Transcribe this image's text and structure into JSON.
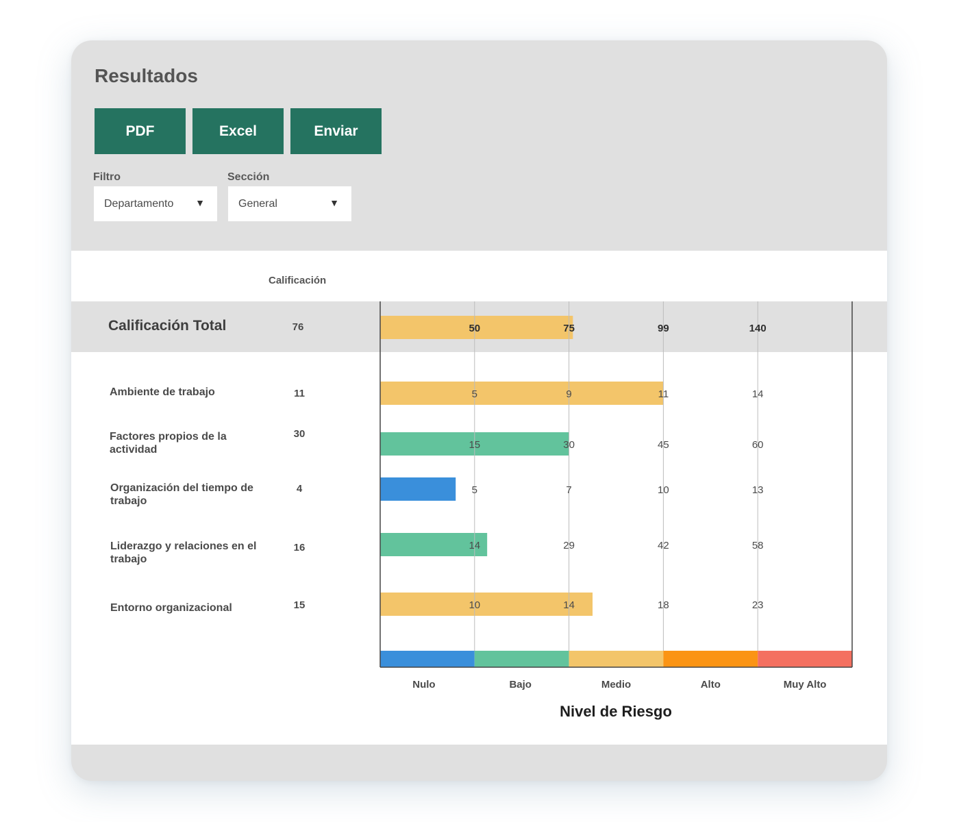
{
  "title": "Resultados",
  "buttons": {
    "pdf": "PDF",
    "excel": "Excel",
    "send": "Enviar"
  },
  "filters": {
    "filter_label": "Filtro",
    "filter_value": "Departamento",
    "section_label": "Sección",
    "section_value": "General"
  },
  "table": {
    "score_header": "Calificación"
  },
  "chart_data": {
    "type": "bar",
    "orientation": "horizontal",
    "xlabel": "Nivel de Riesgo",
    "risk_levels": [
      "Nulo",
      "Bajo",
      "Medio",
      "Alto",
      "Muy Alto"
    ],
    "level_colors": [
      "#3a8fdb",
      "#62c39c",
      "#f3c56a",
      "#fb9414",
      "#f47060"
    ],
    "rows": [
      {
        "label": "Calificación Total",
        "score": "76",
        "value": 76,
        "thresholds": [
          "50",
          "75",
          "99",
          "140"
        ],
        "color": "#f3c56a",
        "total": true
      },
      {
        "label": "Ambiente de trabajo",
        "score": "11",
        "value": 11,
        "thresholds": [
          "5",
          "9",
          "11",
          "14"
        ],
        "color": "#f3c56a"
      },
      {
        "label": "Factores propios de la actividad",
        "score": "30",
        "value": 30,
        "thresholds": [
          "15",
          "30",
          "45",
          "60"
        ],
        "color": "#62c39c"
      },
      {
        "label": "Organización del tiempo de trabajo",
        "score": "4",
        "value": 4,
        "thresholds": [
          "5",
          "7",
          "10",
          "13"
        ],
        "color": "#3a8fdb"
      },
      {
        "label": "Liderazgo y relaciones en el trabajo",
        "score": "16",
        "value": 16,
        "thresholds": [
          "14",
          "29",
          "42",
          "58"
        ],
        "color": "#62c39c"
      },
      {
        "label": "Entorno organizacional",
        "score": "15",
        "value": 15,
        "thresholds": [
          "10",
          "14",
          "18",
          "23"
        ],
        "color": "#f3c56a"
      }
    ]
  }
}
